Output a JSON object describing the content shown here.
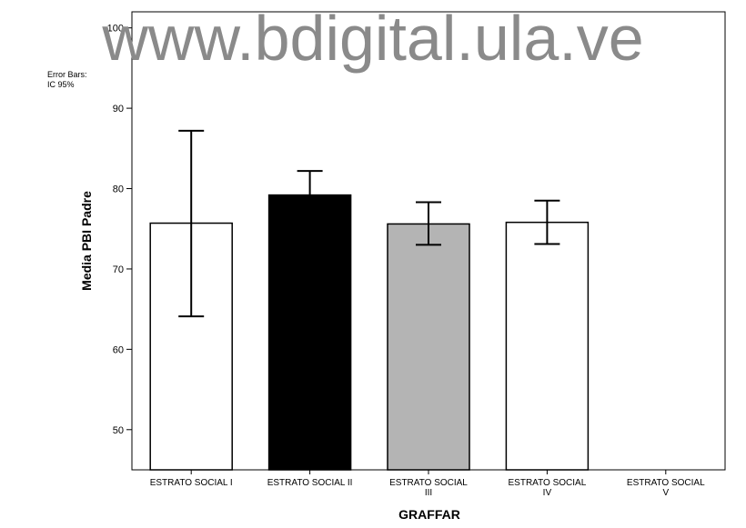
{
  "watermark": "www.bdigital.ula.ve",
  "error_note": {
    "line1": "Error Bars:",
    "line2": "IC 95%"
  },
  "chart_data": {
    "type": "bar",
    "title": "",
    "xlabel": "GRAFFAR",
    "ylabel": "Media PBI Padre",
    "ylim": [
      45,
      102
    ],
    "yticks": [
      50,
      60,
      70,
      80,
      90,
      100
    ],
    "grid": false,
    "categories": [
      [
        "ESTRATO SOCIAL I"
      ],
      [
        "ESTRATO SOCIAL II"
      ],
      [
        "ESTRATO SOCIAL",
        "III"
      ],
      [
        "ESTRATO SOCIAL",
        "IV"
      ],
      [
        "ESTRATO SOCIAL",
        "V"
      ]
    ],
    "values": [
      75.7,
      79.2,
      75.6,
      75.8,
      null
    ],
    "ci_low": [
      64.1,
      76.0,
      73.0,
      73.1,
      null
    ],
    "ci_high": [
      87.2,
      82.2,
      78.3,
      78.5,
      null
    ],
    "fills": [
      "#ffffff",
      "#000000",
      "#b4b4b4",
      "#ffffff",
      "#ffffff"
    ]
  }
}
